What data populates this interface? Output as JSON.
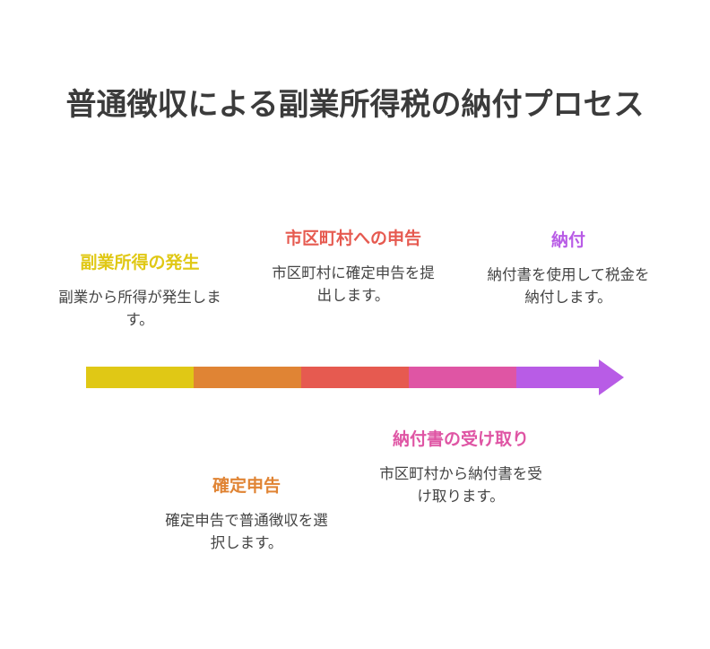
{
  "title": "普通徴収による副業所得税の納付プロセス",
  "colors": {
    "text": "#3b3b3b",
    "step1": "#e0c815",
    "step2": "#e08434",
    "step3": "#e65a50",
    "step4": "#df55a4",
    "step5": "#b85ce6"
  },
  "steps": [
    {
      "label": "副業所得の発生",
      "desc": "副業から所得が発生します。",
      "color": "#e0c815"
    },
    {
      "label": "確定申告",
      "desc": "確定申告で普通徴収を選択します。",
      "color": "#e08434"
    },
    {
      "label": "市区町村への申告",
      "desc": "市区町村に確定申告を提出します。",
      "color": "#e65a50"
    },
    {
      "label": "納付書の受け取り",
      "desc": "市区町村から納付書を受け取ります。",
      "color": "#df55a4"
    },
    {
      "label": "納付",
      "desc": "納付書を使用して税金を納付します。",
      "color": "#b85ce6"
    }
  ]
}
